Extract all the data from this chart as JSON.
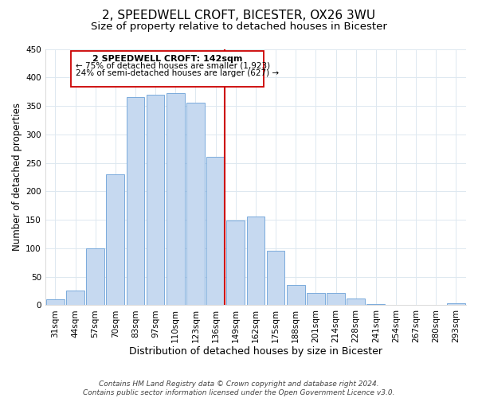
{
  "title": "2, SPEEDWELL CROFT, BICESTER, OX26 3WU",
  "subtitle": "Size of property relative to detached houses in Bicester",
  "xlabel": "Distribution of detached houses by size in Bicester",
  "ylabel": "Number of detached properties",
  "bar_labels": [
    "31sqm",
    "44sqm",
    "57sqm",
    "70sqm",
    "83sqm",
    "97sqm",
    "110sqm",
    "123sqm",
    "136sqm",
    "149sqm",
    "162sqm",
    "175sqm",
    "188sqm",
    "201sqm",
    "214sqm",
    "228sqm",
    "241sqm",
    "254sqm",
    "267sqm",
    "280sqm",
    "293sqm"
  ],
  "bar_heights": [
    10,
    25,
    100,
    230,
    365,
    370,
    373,
    355,
    260,
    148,
    155,
    96,
    35,
    22,
    22,
    11,
    2,
    0,
    0,
    0,
    3
  ],
  "bar_color": "#c6d9f0",
  "bar_edge_color": "#7aaadc",
  "highlight_bar_index": 8,
  "highlight_line_color": "#cc0000",
  "box_text_line1": "2 SPEEDWELL CROFT: 142sqm",
  "box_text_line2": "← 75% of detached houses are smaller (1,923)",
  "box_text_line3": "24% of semi-detached houses are larger (627) →",
  "box_color": "#ffffff",
  "box_edge_color": "#cc0000",
  "ylim": [
    0,
    450
  ],
  "yticks": [
    0,
    50,
    100,
    150,
    200,
    250,
    300,
    350,
    400,
    450
  ],
  "footer_line1": "Contains HM Land Registry data © Crown copyright and database right 2024.",
  "footer_line2": "Contains public sector information licensed under the Open Government Licence v3.0.",
  "title_fontsize": 11,
  "subtitle_fontsize": 9.5,
  "xlabel_fontsize": 9,
  "ylabel_fontsize": 8.5,
  "tick_fontsize": 7.5,
  "footer_fontsize": 6.5,
  "background_color": "#ffffff",
  "grid_color": "#dde8f0"
}
